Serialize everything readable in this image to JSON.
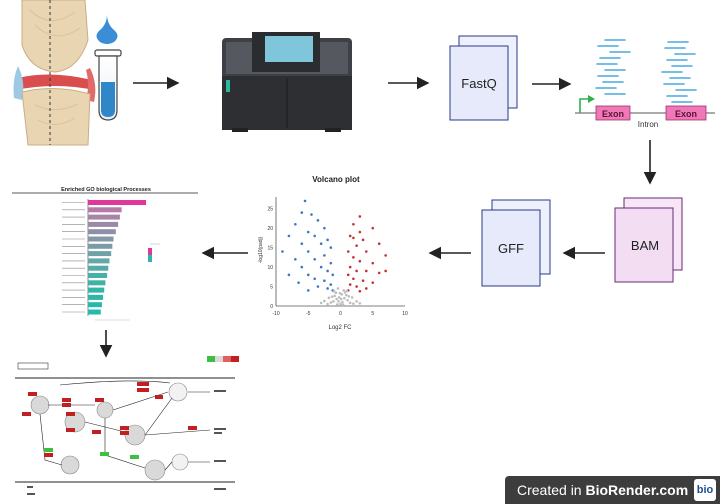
{
  "nodes": {
    "fastq": "FastQ",
    "bam": "BAM",
    "gff": "GFF",
    "exon1": "Exon",
    "exon2": "Exon",
    "intron": "Intron"
  },
  "volcano": {
    "title": "Volcano plot",
    "xlabel": "Log2 FC",
    "ylabel": "-log10(padj)",
    "x_ticks": [
      "-10",
      "-5",
      "0",
      "5",
      "10"
    ],
    "y_ticks": [
      "0",
      "5",
      "10",
      "15",
      "20",
      "25"
    ]
  },
  "go_chart": {
    "title": "Enriched GO biological Processes"
  },
  "chart_data": {
    "type": "scatter",
    "title": "Volcano plot",
    "xlabel": "Log2 FC",
    "ylabel": "-log10(padj)",
    "xlim": [
      -10,
      10
    ],
    "ylim": [
      0,
      28
    ],
    "series": [
      {
        "color": "#3b78c2",
        "points": [
          [
            -5.5,
            27
          ],
          [
            -6,
            24
          ],
          [
            -4.5,
            23.5
          ],
          [
            -7,
            21
          ],
          [
            -3.5,
            22
          ],
          [
            -2.5,
            20
          ],
          [
            -5,
            19
          ],
          [
            -8,
            18
          ],
          [
            -4,
            18
          ],
          [
            -2,
            17
          ],
          [
            -6,
            16
          ],
          [
            -3,
            16
          ],
          [
            -1.5,
            15
          ],
          [
            -9,
            14
          ],
          [
            -5,
            14
          ],
          [
            -2.5,
            13
          ],
          [
            -7,
            12
          ],
          [
            -4,
            12
          ],
          [
            -1.5,
            11
          ],
          [
            -6,
            10
          ],
          [
            -3,
            10
          ],
          [
            -2,
            9
          ],
          [
            -8,
            8
          ],
          [
            -5,
            8
          ],
          [
            -1.2,
            8
          ],
          [
            -4,
            7
          ],
          [
            -2.5,
            6.5
          ],
          [
            -6.5,
            6
          ],
          [
            -1.5,
            5.5
          ],
          [
            -3.5,
            5
          ],
          [
            -2,
            4.5
          ],
          [
            -5,
            4
          ],
          [
            -1.2,
            4
          ]
        ]
      },
      {
        "color": "#c23434",
        "points": [
          [
            3,
            23
          ],
          [
            2,
            21
          ],
          [
            5,
            20
          ],
          [
            1.5,
            18
          ],
          [
            3.5,
            17
          ],
          [
            6,
            16
          ],
          [
            2.5,
            15.5
          ],
          [
            1.2,
            14
          ],
          [
            4,
            14
          ],
          [
            7,
            13
          ],
          [
            2,
            12.5
          ],
          [
            3,
            11.5
          ],
          [
            5,
            11
          ],
          [
            1.5,
            10
          ],
          [
            2.5,
            9
          ],
          [
            4,
            9
          ],
          [
            6,
            8.5
          ],
          [
            1.2,
            8
          ],
          [
            2,
            7
          ],
          [
            3.5,
            6.5
          ],
          [
            5,
            6
          ],
          [
            1.5,
            5.5
          ],
          [
            2.5,
            5
          ],
          [
            4,
            4.5
          ],
          [
            1.2,
            4
          ],
          [
            3,
            3.8
          ],
          [
            7,
            9
          ],
          [
            2,
            17.5
          ],
          [
            3,
            19
          ]
        ]
      },
      {
        "color": "#bdbdbd",
        "points": [
          [
            0,
            0.5
          ],
          [
            0.3,
            1
          ],
          [
            -0.3,
            1.2
          ],
          [
            0.6,
            2
          ],
          [
            -0.6,
            1.8
          ],
          [
            0.9,
            2.8
          ],
          [
            -0.9,
            2.6
          ],
          [
            0.2,
            3
          ],
          [
            -0.2,
            2.2
          ],
          [
            1.1,
            1.5
          ],
          [
            -1.1,
            1.2
          ],
          [
            0.4,
            0.3
          ],
          [
            -0.5,
            0.4
          ],
          [
            1.5,
            0.8
          ],
          [
            -1.5,
            0.9
          ],
          [
            2,
            0.6
          ],
          [
            -2,
            0.5
          ],
          [
            0.1,
            1.8
          ],
          [
            -0.1,
            3.3
          ],
          [
            0.7,
            3.5
          ],
          [
            -0.7,
            3.4
          ],
          [
            1.3,
            2.5
          ],
          [
            -1.3,
            2.4
          ],
          [
            2.5,
            1.2
          ],
          [
            -2.5,
            1.3
          ],
          [
            0.5,
            4
          ],
          [
            -0.4,
            4.5
          ],
          [
            1,
            3.9
          ],
          [
            -1,
            3.8
          ],
          [
            3,
            0.7
          ],
          [
            -3,
            0.8
          ],
          [
            1.8,
            2.2
          ],
          [
            -1.8,
            2.1
          ]
        ]
      }
    ]
  },
  "go_bars": [
    {
      "value": 1.0,
      "color": "#e0389a"
    },
    {
      "value": 0.58,
      "color": "#b57aa8"
    },
    {
      "value": 0.55,
      "color": "#a884a7"
    },
    {
      "value": 0.52,
      "color": "#9a8aa7"
    },
    {
      "value": 0.48,
      "color": "#8f90a8"
    },
    {
      "value": 0.44,
      "color": "#8596a8"
    },
    {
      "value": 0.42,
      "color": "#7a9ca8"
    },
    {
      "value": 0.4,
      "color": "#6fa2a8"
    },
    {
      "value": 0.37,
      "color": "#63a7a8"
    },
    {
      "value": 0.35,
      "color": "#56aba8"
    },
    {
      "value": 0.33,
      "color": "#49afa8"
    },
    {
      "value": 0.3,
      "color": "#3eb2a8"
    },
    {
      "value": 0.28,
      "color": "#34b4a9"
    },
    {
      "value": 0.26,
      "color": "#2db6aa"
    },
    {
      "value": 0.24,
      "color": "#28b8ab"
    },
    {
      "value": 0.22,
      "color": "#24baad"
    }
  ],
  "footer": {
    "prefix": "Created in ",
    "brand": "BioRender.com",
    "logo": "bio"
  }
}
